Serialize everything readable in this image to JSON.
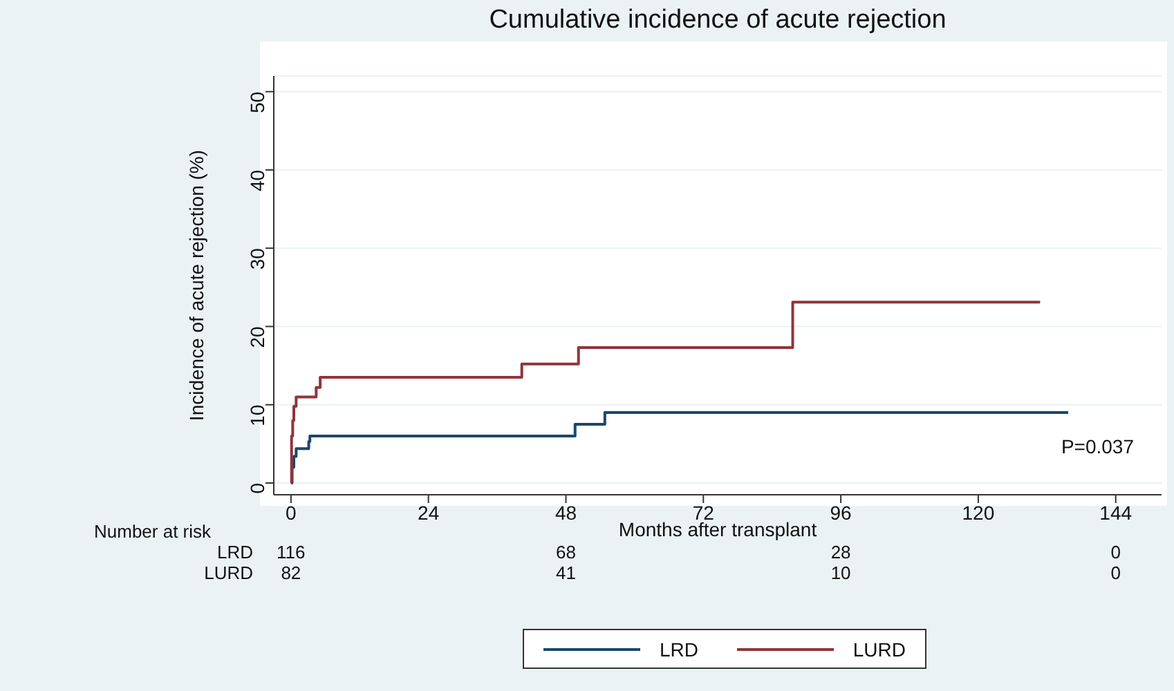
{
  "chart_data": {
    "type": "step",
    "title": "Cumulative incidence of acute rejection",
    "xlabel": "Months after transplant",
    "ylabel": "Incidence of acute rejection (%)",
    "xlim": [
      -3,
      152
    ],
    "xticks": [
      0,
      24,
      48,
      72,
      96,
      120,
      144
    ],
    "ylim": [
      -1.5,
      52
    ],
    "yticks": [
      0,
      10,
      20,
      30,
      40,
      50
    ],
    "grid": "y",
    "legend": "bottom",
    "series": [
      {
        "name": "LRD",
        "color": "#1a476f",
        "x": [
          0,
          0.2,
          0.5,
          0.9,
          3.1,
          3.3,
          49.6,
          54.8,
          135.7
        ],
        "values": [
          0,
          2,
          3.4,
          4.4,
          5.3,
          6,
          7.5,
          9,
          9
        ]
      },
      {
        "name": "LURD",
        "color": "#90353b",
        "x": [
          0,
          0.1,
          0.3,
          0.5,
          0.9,
          4.4,
          5.1,
          40.3,
          50.2,
          87.6,
          130.8
        ],
        "values": [
          0,
          6,
          8,
          9.8,
          11,
          12.2,
          13.5,
          15.2,
          17.3,
          23.1,
          23.1
        ]
      }
    ],
    "annotations": [
      "P=0.037",
      "Number at risk",
      "LRD",
      "116",
      "68",
      "28",
      "0",
      "LURD",
      "82",
      "41",
      "10",
      "0"
    ]
  }
}
